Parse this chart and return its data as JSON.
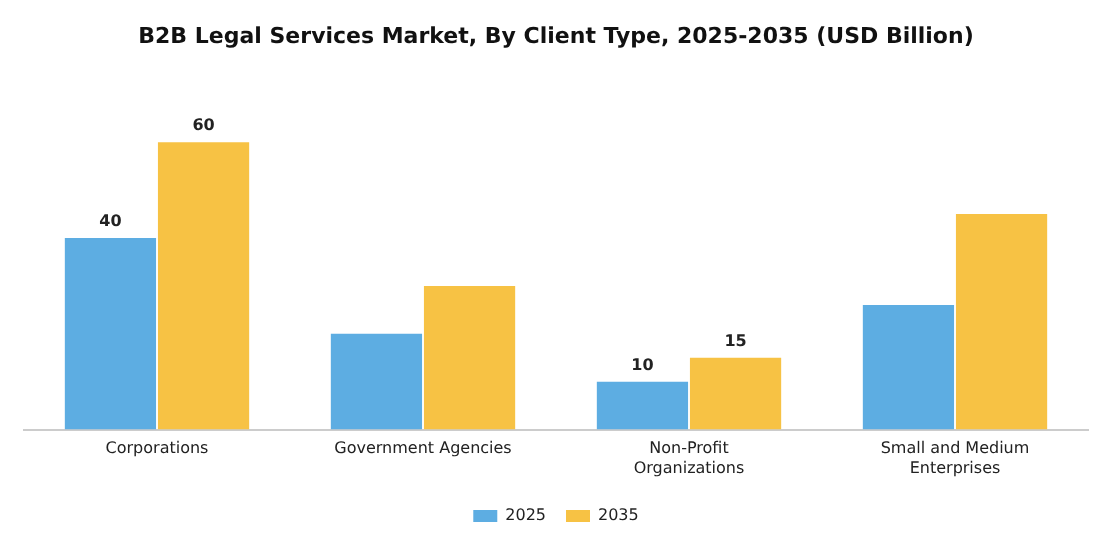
{
  "chart_data": {
    "type": "bar",
    "title": "B2B Legal Services Market, By Client Type, 2025-2035 (USD Billion)",
    "categories": [
      "Corporations",
      "Government Agencies",
      "Non-Profit Organizations",
      "Small and Medium Enterprises"
    ],
    "series": [
      {
        "name": "2025",
        "color": "#5dade2",
        "values": [
          40,
          20,
          10,
          26
        ],
        "value_labels": [
          "40",
          null,
          "10",
          null
        ]
      },
      {
        "name": "2035",
        "color": "#f7c244",
        "values": [
          60,
          30,
          15,
          45
        ],
        "value_labels": [
          "60",
          null,
          "15",
          null
        ]
      }
    ],
    "tick_labels": "x",
    "grid": false,
    "legend": "bottom"
  }
}
